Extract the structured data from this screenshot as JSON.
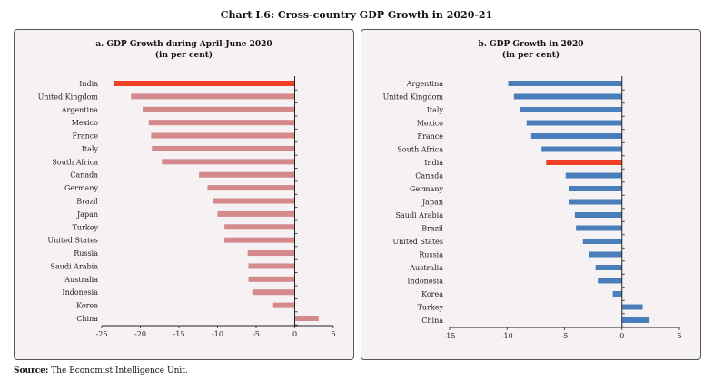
{
  "title": "Chart I.6: Cross-country GDP Growth in 2020-21",
  "source_label": "Source:",
  "source_text": "The Economist Intelligence Unit.",
  "chart_data": [
    {
      "type": "bar",
      "orientation": "horizontal",
      "title": "a. GDP Growth during April-June 2020",
      "subtitle": "(in per cent)",
      "categories": [
        "India",
        "United Kingdom",
        "Argentina",
        "Mexico",
        "France",
        "Italy",
        "South Africa",
        "Canada",
        "Germany",
        "Brazil",
        "Japan",
        "Turkey",
        "United States",
        "Russia",
        "Saudi Arabia",
        "Australia",
        "Indonesia",
        "Korea",
        "China"
      ],
      "values": [
        -23.4,
        -21.2,
        -19.7,
        -18.9,
        -18.6,
        -18.5,
        -17.2,
        -12.4,
        -11.3,
        -10.6,
        -10.0,
        -9.1,
        -9.1,
        -6.1,
        -6.0,
        -6.0,
        -5.5,
        -2.8,
        3.1
      ],
      "highlight": "India",
      "xlim": [
        -25,
        5
      ],
      "xticks": [
        -25,
        -20,
        -15,
        -10,
        -5,
        0,
        5
      ],
      "colors": {
        "bar": "#d4898c",
        "highlight": "#ef4023"
      }
    },
    {
      "type": "bar",
      "orientation": "horizontal",
      "title": "b. GDP Growth in 2020",
      "subtitle": "(in per cent)",
      "categories": [
        "Argentina",
        "United Kingdom",
        "Italy",
        "Mexico",
        "France",
        "South Africa",
        "India",
        "Canada",
        "Germany",
        "Japan",
        "Saudi Arabia",
        "Brazil",
        "United States",
        "Russia",
        "Australia",
        "Indonesia",
        "Korea",
        "Turkey",
        "China"
      ],
      "values": [
        -9.9,
        -9.4,
        -8.9,
        -8.3,
        -7.9,
        -7.0,
        -6.6,
        -4.9,
        -4.6,
        -4.6,
        -4.1,
        -4.0,
        -3.4,
        -2.9,
        -2.3,
        -2.1,
        -0.8,
        1.8,
        2.4
      ],
      "highlight": "India",
      "xlim": [
        -15,
        5
      ],
      "xticks": [
        -15,
        -10,
        -5,
        0,
        5
      ],
      "colors": {
        "bar": "#4a7ebb",
        "highlight": "#ef4023"
      }
    }
  ]
}
